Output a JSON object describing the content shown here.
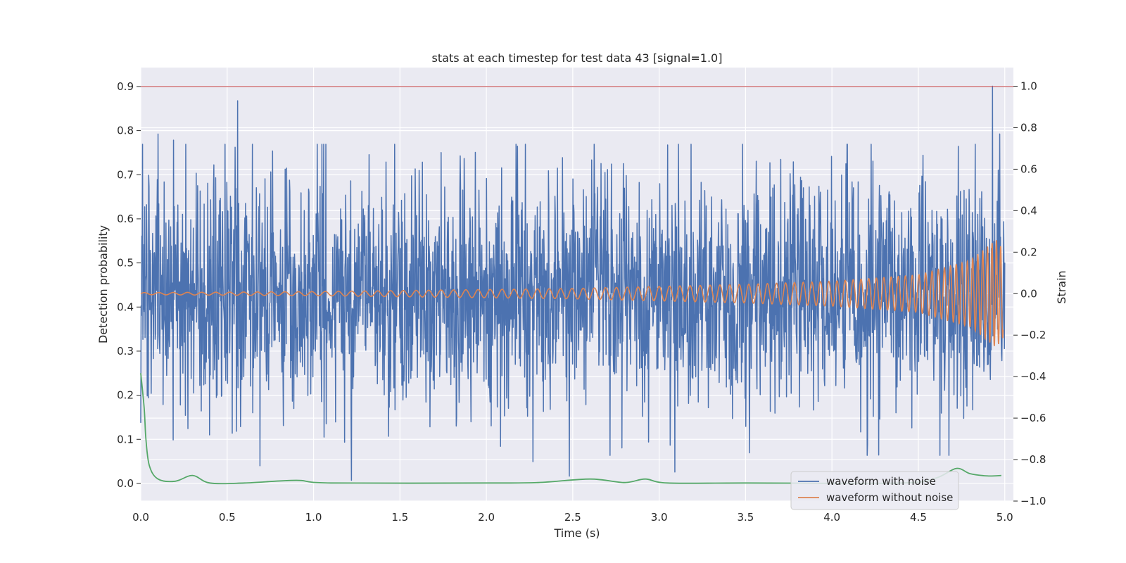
{
  "chart_data": {
    "type": "line",
    "title": "stats at each timestep for test data 43 [signal=1.0]",
    "xlabel": "Time (s)",
    "ylabel_left": "Detection probability",
    "ylabel_right": "Strain",
    "xlim": [
      0.0,
      5.05
    ],
    "ylim_left": [
      -0.04,
      0.943
    ],
    "ylim_right": [
      -1.0,
      1.09
    ],
    "x_ticks": [
      0.0,
      0.5,
      1.0,
      1.5,
      2.0,
      2.5,
      3.0,
      3.5,
      4.0,
      4.5,
      5.0
    ],
    "x_tick_labels": [
      "0.0",
      "0.5",
      "1.0",
      "1.5",
      "2.0",
      "2.5",
      "3.0",
      "3.5",
      "4.0",
      "4.5",
      "5.0"
    ],
    "y_left_ticks": [
      0.0,
      0.1,
      0.2,
      0.3,
      0.4,
      0.5,
      0.6,
      0.7,
      0.8,
      0.9
    ],
    "y_left_tick_labels": [
      "0.0",
      "0.1",
      "0.2",
      "0.3",
      "0.4",
      "0.5",
      "0.6",
      "0.7",
      "0.8",
      "0.9"
    ],
    "y_right_ticks": [
      -1.0,
      -0.8,
      -0.6,
      -0.4,
      -0.2,
      0.0,
      0.2,
      0.4,
      0.6,
      0.8,
      1.0
    ],
    "y_right_tick_labels": [
      "−1.0",
      "−0.8",
      "−0.6",
      "−0.4",
      "−0.2",
      "0.0",
      "0.2",
      "0.4",
      "0.6",
      "0.8",
      "1.0"
    ],
    "grid": true,
    "legend_position": "lower right",
    "threshold_line": {
      "axis": "left",
      "y": 0.9,
      "color": "#c44e52"
    },
    "series": [
      {
        "name": "waveform with noise",
        "axis": "right",
        "color": "#4c72b0",
        "description": "dense noisy strain, roughly -0.95 to 1.0",
        "peaks": [
          {
            "x": 0.01,
            "y": 0.72
          },
          {
            "x": 0.1,
            "y": 0.77
          },
          {
            "x": 0.19,
            "y": 0.74
          },
          {
            "x": 0.56,
            "y": 0.93
          },
          {
            "x": 0.69,
            "y": -0.83
          },
          {
            "x": 1.22,
            "y": -0.9
          },
          {
            "x": 2.27,
            "y": -0.81
          },
          {
            "x": 2.48,
            "y": -0.88
          },
          {
            "x": 3.09,
            "y": -0.86
          },
          {
            "x": 4.93,
            "y": 1.0
          },
          {
            "x": 4.97,
            "y": 0.77
          }
        ]
      },
      {
        "name": "waveform without noise",
        "axis": "right",
        "color": "#dd8452",
        "description": "chirp signal with growing amplitude and frequency",
        "x": [
          0.0,
          1.0,
          2.0,
          2.5,
          3.0,
          3.5,
          4.0,
          4.5,
          4.8,
          4.95,
          5.0
        ],
        "amplitude": [
          0.005,
          0.01,
          0.02,
          0.025,
          0.035,
          0.045,
          0.06,
          0.09,
          0.16,
          0.26,
          0.2
        ]
      },
      {
        "name": "",
        "axis": "left",
        "color": "#55a868",
        "x": [
          0.0,
          0.02,
          0.03,
          0.05,
          0.1,
          0.2,
          0.3,
          0.4,
          0.6,
          0.9,
          1.1,
          2.0,
          2.3,
          2.6,
          2.8,
          2.92,
          3.05,
          3.5,
          4.4,
          4.6,
          4.72,
          4.8,
          4.9,
          4.98
        ],
        "y": [
          0.25,
          0.17,
          0.1,
          0.04,
          0.01,
          0.005,
          0.018,
          0.001,
          0.001,
          0.007,
          0.001,
          0.001,
          0.002,
          0.01,
          0.002,
          0.01,
          0.001,
          0.001,
          0.001,
          0.012,
          0.034,
          0.022,
          0.017,
          0.018
        ]
      }
    ]
  }
}
